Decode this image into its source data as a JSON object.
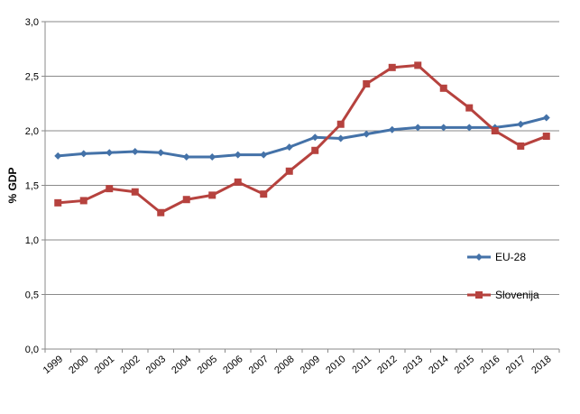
{
  "chart_data": {
    "type": "line",
    "title": "",
    "xlabel": "",
    "ylabel": "% GDP",
    "ylim": [
      0,
      3
    ],
    "yticks": [
      "0,0",
      "0,5",
      "1,0",
      "1,5",
      "2,0",
      "2,5",
      "3,0"
    ],
    "x": [
      "1999",
      "2000",
      "2001",
      "2002",
      "2003",
      "2004",
      "2005",
      "2006",
      "2007",
      "2008",
      "2009",
      "2010",
      "2011",
      "2012",
      "2013",
      "2014",
      "2015",
      "2016",
      "2017",
      "2018"
    ],
    "grid": "horizontal",
    "legend_position": "right",
    "series": [
      {
        "name": "EU-28",
        "color": "#4472a8",
        "marker": "diamond",
        "values": [
          1.77,
          1.79,
          1.8,
          1.81,
          1.8,
          1.76,
          1.76,
          1.78,
          1.78,
          1.85,
          1.94,
          1.93,
          1.97,
          2.01,
          2.03,
          2.03,
          2.03,
          2.03,
          2.06,
          2.12
        ]
      },
      {
        "name": "Slovenija",
        "color": "#b6423e",
        "marker": "square",
        "values": [
          1.34,
          1.36,
          1.47,
          1.44,
          1.25,
          1.37,
          1.41,
          1.53,
          1.42,
          1.63,
          1.82,
          2.06,
          2.43,
          2.58,
          2.6,
          2.39,
          2.21,
          2.0,
          1.86,
          1.95
        ]
      }
    ]
  }
}
